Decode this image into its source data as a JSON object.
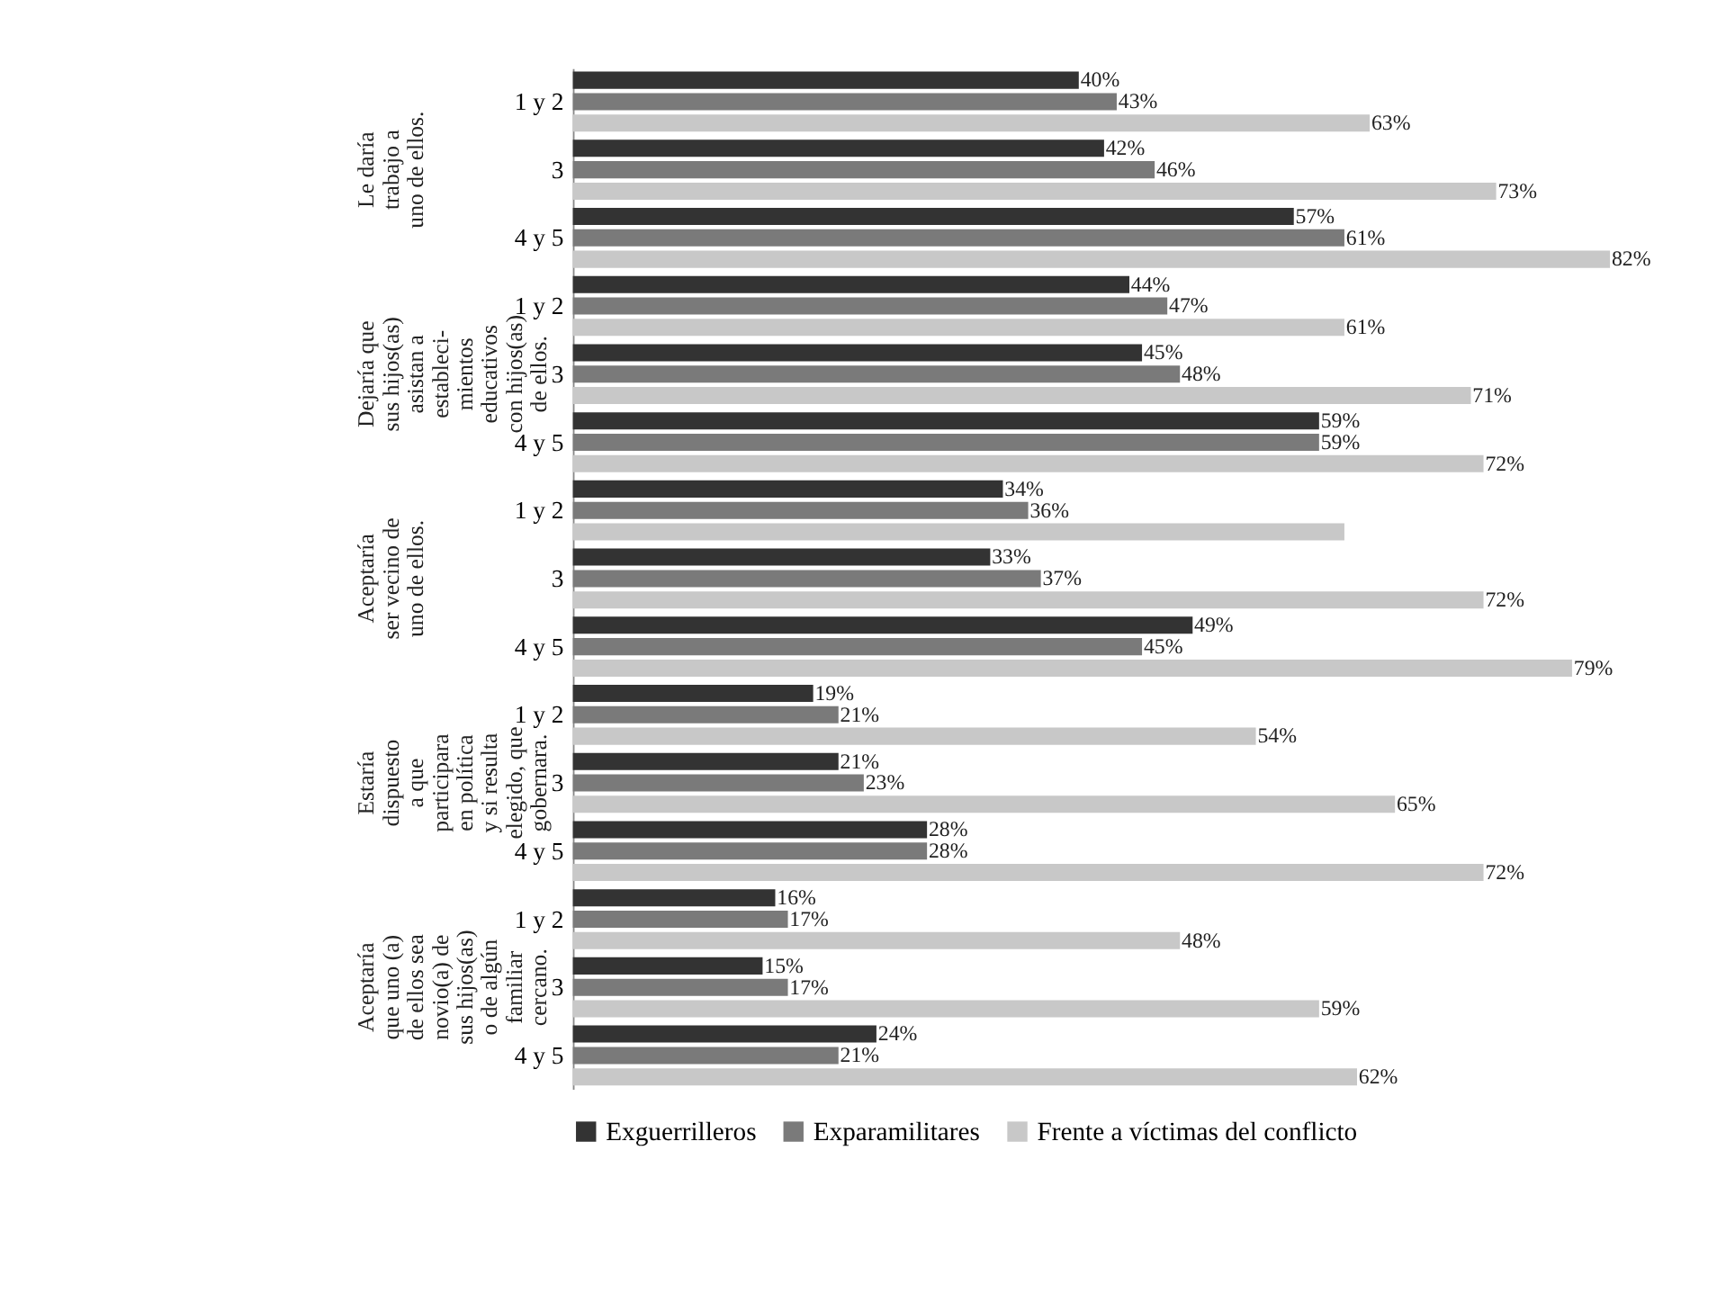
{
  "chart_data": {
    "type": "bar",
    "orientation": "horizontal",
    "legend": "bottom",
    "tick_labels": "y",
    "categories": [
      "1 y 2",
      "3",
      "4 y 5",
      "1 y 2",
      "3",
      "4 y 5",
      "1 y 2",
      "3",
      "4 y 5",
      "1 y 2",
      "3",
      "4 y 5",
      "1 y 2",
      "3",
      "4 y 5"
    ],
    "annotations": [
      "Le daría\ntrabajo a\nuno de ellos.",
      "Dejaría que\nsus hijos(as)\nasistan a\nestableci-\nmientos\neducativos\ncon hijos(as)\nde ellos.",
      "Aceptaría\nser vecino de\nuno de ellos.",
      "Estaría\ndispuesto\na que\nparticipara\nen política\ny si resulta\nelegido, que\ngobernara.",
      "Aceptaría\nque uno (a)\nde ellos sea\nnovio(a) de\nsus hijos(as)\no de algún\nfamiliar\ncercano."
    ],
    "series": [
      {
        "name": "Exguerrilleros",
        "color": "#333333",
        "values": [
          40,
          42,
          57,
          44,
          45,
          59,
          34,
          33,
          49,
          19,
          21,
          28,
          16,
          15,
          24
        ],
        "value_labels": [
          "40%",
          "42%",
          "57%",
          "44%",
          "45%",
          "59%",
          "34%",
          "33%",
          "49%",
          "19%",
          "21%",
          "28%",
          "16%",
          "15%",
          "24%"
        ]
      },
      {
        "name": "Exparamilitares",
        "color": "#7a7a7a",
        "values": [
          43,
          46,
          61,
          47,
          48,
          59,
          36,
          37,
          45,
          21,
          23,
          28,
          17,
          17,
          21
        ],
        "value_labels": [
          "43%",
          "46%",
          "61%",
          "47%",
          "48%",
          "59%",
          "36%",
          "37%",
          "45%",
          "21%",
          "23%",
          "28%",
          "17%",
          "17%",
          "21%"
        ]
      },
      {
        "name": "Frente a víctimas del conflicto",
        "color": "#c8c8c8",
        "values": [
          63,
          73,
          82,
          61,
          71,
          72,
          61,
          72,
          79,
          54,
          65,
          72,
          48,
          59,
          62
        ],
        "value_labels": [
          "63%",
          "73%",
          "82%",
          "61%",
          "71%",
          "72%",
          null,
          "72%",
          "79%",
          "54%",
          "65%",
          "72%",
          "48%",
          "59%",
          "62%"
        ]
      }
    ]
  }
}
